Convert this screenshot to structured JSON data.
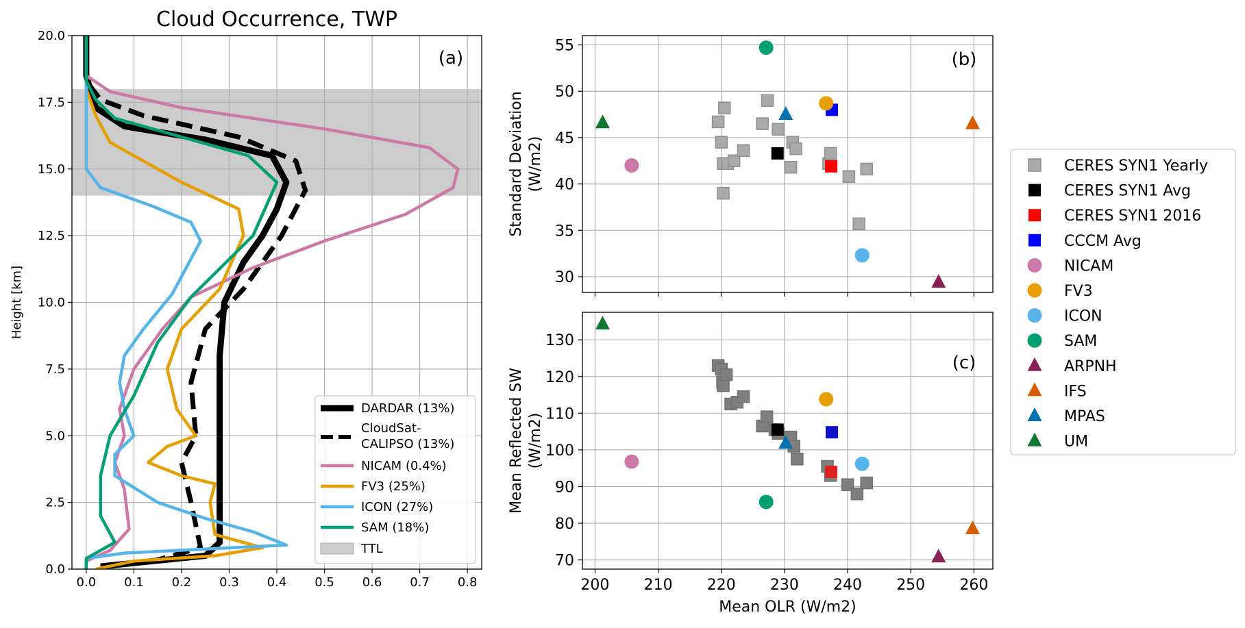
{
  "colors": {
    "DARDAR": "#000000",
    "CloudSat": "#000000",
    "NICAM": "#CC79A7",
    "FV3": "#E69F00",
    "ICON": "#56B4E9",
    "SAM": "#009E73",
    "ARPNH": "#882255",
    "IFS": "#D55E00",
    "MPAS": "#0072B2",
    "UM": "#117733",
    "CERES_yearly": "#aaaaaa",
    "CERES_yearly_c": "#7f7f7f",
    "CERES_avg": "#000000",
    "CERES_2016": "#ff0000",
    "CERES_2016_c": "#dd2222",
    "CCCM": "#0000ff",
    "CCCM_c": "#1111cc",
    "TTL": "#cccccc"
  },
  "chart_data": [
    {
      "type": "line",
      "title": "Cloud Occurrence, TWP",
      "panel_label": "(a)",
      "xlabel": "",
      "ylabel": "Height [km]",
      "xlim": [
        -0.03,
        0.83
      ],
      "ylim": [
        0,
        20
      ],
      "xticks": [
        "0.0",
        "0.1",
        "0.2",
        "0.3",
        "0.4",
        "0.5",
        "0.6",
        "0.7",
        "0.8"
      ],
      "yticks": [
        "0.0",
        "2.5",
        "5.0",
        "7.5",
        "10.0",
        "12.5",
        "15.0",
        "17.5",
        "20.0"
      ],
      "grid": true,
      "legend_position": "lower-right",
      "ttl_band": [
        14,
        18
      ],
      "ttl_label": "TTL",
      "series": [
        {
          "key": "DARDAR",
          "name": "DARDAR (13%)",
          "style": "solid-thick",
          "points": [
            [
              0.03,
              0.1
            ],
            [
              0.14,
              0.3
            ],
            [
              0.25,
              0.5
            ],
            [
              0.28,
              1
            ],
            [
              0.28,
              3
            ],
            [
              0.28,
              5.5
            ],
            [
              0.28,
              8
            ],
            [
              0.29,
              10
            ],
            [
              0.33,
              11.5
            ],
            [
              0.37,
              12.5
            ],
            [
              0.4,
              13.5
            ],
            [
              0.42,
              14.5
            ],
            [
              0.39,
              15.5
            ],
            [
              0.25,
              16.1
            ],
            [
              0.08,
              16.6
            ],
            [
              0.02,
              17.3
            ],
            [
              0.0,
              18.5
            ],
            [
              0.0,
              20
            ]
          ]
        },
        {
          "key": "CloudSat",
          "name": "CloudSat-CALIPSO (13%)",
          "style": "dashed",
          "points": [
            [
              0.03,
              0.1
            ],
            [
              0.14,
              0.3
            ],
            [
              0.24,
              0.8
            ],
            [
              0.22,
              2.5
            ],
            [
              0.2,
              4
            ],
            [
              0.23,
              5
            ],
            [
              0.22,
              7
            ],
            [
              0.25,
              9
            ],
            [
              0.33,
              10.5
            ],
            [
              0.41,
              12.5
            ],
            [
              0.46,
              14.2
            ],
            [
              0.44,
              15.3
            ],
            [
              0.32,
              16.2
            ],
            [
              0.12,
              17.0
            ],
            [
              0.03,
              17.6
            ],
            [
              0.0,
              18.3
            ],
            [
              0.0,
              20
            ]
          ]
        },
        {
          "key": "NICAM",
          "name": "NICAM (0.4%)",
          "style": "solid",
          "points": [
            [
              0.0,
              0.3
            ],
            [
              0.05,
              0.7
            ],
            [
              0.09,
              1.5
            ],
            [
              0.08,
              3
            ],
            [
              0.06,
              4
            ],
            [
              0.08,
              5
            ],
            [
              0.07,
              6
            ],
            [
              0.1,
              7.5
            ],
            [
              0.16,
              9
            ],
            [
              0.22,
              10.2
            ],
            [
              0.35,
              11.3
            ],
            [
              0.5,
              12.3
            ],
            [
              0.67,
              13.3
            ],
            [
              0.77,
              14.3
            ],
            [
              0.78,
              15
            ],
            [
              0.72,
              15.8
            ],
            [
              0.5,
              16.5
            ],
            [
              0.2,
              17.3
            ],
            [
              0.05,
              17.9
            ],
            [
              0.0,
              18.5
            ],
            [
              0.0,
              20
            ]
          ]
        },
        {
          "key": "FV3",
          "name": "FV3 (25%)",
          "style": "solid",
          "points": [
            [
              0.02,
              0
            ],
            [
              0.1,
              0.3
            ],
            [
              0.27,
              0.5
            ],
            [
              0.37,
              0.8
            ],
            [
              0.27,
              1.3
            ],
            [
              0.26,
              2.5
            ],
            [
              0.27,
              3.2
            ],
            [
              0.2,
              3.5
            ],
            [
              0.13,
              4
            ],
            [
              0.17,
              4.6
            ],
            [
              0.23,
              5
            ],
            [
              0.19,
              6
            ],
            [
              0.17,
              7.5
            ],
            [
              0.2,
              9
            ],
            [
              0.28,
              10.5
            ],
            [
              0.33,
              12.5
            ],
            [
              0.32,
              13.5
            ],
            [
              0.2,
              14.5
            ],
            [
              0.05,
              16
            ],
            [
              0.02,
              17
            ],
            [
              0.0,
              18
            ],
            [
              0.0,
              20
            ]
          ]
        },
        {
          "key": "ICON",
          "name": "ICON (27%)",
          "style": "solid",
          "points": [
            [
              0.0,
              0
            ],
            [
              0.0,
              0.4
            ],
            [
              0.08,
              0.6
            ],
            [
              0.42,
              0.9
            ],
            [
              0.35,
              1.4
            ],
            [
              0.25,
              1.9
            ],
            [
              0.15,
              2.5
            ],
            [
              0.06,
              3.5
            ],
            [
              0.06,
              4.3
            ],
            [
              0.1,
              5
            ],
            [
              0.08,
              6
            ],
            [
              0.07,
              7
            ],
            [
              0.08,
              8
            ],
            [
              0.12,
              9
            ],
            [
              0.18,
              10.3
            ],
            [
              0.24,
              12.3
            ],
            [
              0.22,
              13
            ],
            [
              0.14,
              13.6
            ],
            [
              0.03,
              14.3
            ],
            [
              0.0,
              15
            ],
            [
              0.0,
              16
            ],
            [
              0.0,
              20
            ]
          ]
        },
        {
          "key": "SAM",
          "name": "SAM (18%)",
          "style": "solid",
          "points": [
            [
              0.0,
              0
            ],
            [
              0.0,
              0.4
            ],
            [
              0.06,
              1
            ],
            [
              0.03,
              2
            ],
            [
              0.03,
              3.5
            ],
            [
              0.05,
              5
            ],
            [
              0.1,
              6.5
            ],
            [
              0.15,
              8.5
            ],
            [
              0.22,
              10.2
            ],
            [
              0.35,
              12.5
            ],
            [
              0.4,
              14.5
            ],
            [
              0.34,
              15.5
            ],
            [
              0.2,
              16.2
            ],
            [
              0.06,
              16.9
            ],
            [
              0.02,
              17.6
            ],
            [
              0.0,
              18.3
            ],
            [
              0.0,
              20
            ]
          ]
        }
      ]
    },
    {
      "type": "scatter",
      "panel_label": "(b)",
      "xlabel": "",
      "ylabel": "Standard Deviation (W/m2)",
      "ylabel_lines": [
        "Standard Deviation",
        "(W/m2)"
      ],
      "xlim": [
        198,
        263
      ],
      "ylim": [
        28.3,
        56
      ],
      "yticks": [
        "30",
        "35",
        "40",
        "45",
        "50",
        "55"
      ],
      "grid": true,
      "ceres_yearly": [
        [
          219.5,
          46.7
        ],
        [
          220,
          44.5
        ],
        [
          220.3,
          42.2
        ],
        [
          220.5,
          48.2
        ],
        [
          221,
          42.2
        ],
        [
          222,
          42.5
        ],
        [
          223.5,
          43.6
        ],
        [
          226.5,
          46.5
        ],
        [
          227.3,
          49
        ],
        [
          229,
          45.9
        ],
        [
          231,
          41.8
        ],
        [
          231.3,
          44.5
        ],
        [
          231.8,
          43.8
        ],
        [
          237,
          42.2
        ],
        [
          237.3,
          43.3
        ],
        [
          240.2,
          40.8
        ],
        [
          241.8,
          35.7
        ],
        [
          243,
          41.6
        ],
        [
          220.3,
          39
        ]
      ],
      "points": [
        {
          "key": "CERES_avg",
          "shape": "square",
          "x": 228.9,
          "y": 43.3
        },
        {
          "key": "CERES_2016",
          "shape": "square",
          "x": 237.4,
          "y": 41.9
        },
        {
          "key": "CCCM",
          "shape": "square",
          "x": 237.5,
          "y": 48
        },
        {
          "key": "NICAM",
          "shape": "circle",
          "x": 205.8,
          "y": 42
        },
        {
          "key": "FV3",
          "shape": "circle",
          "x": 236.6,
          "y": 48.7
        },
        {
          "key": "ICON",
          "shape": "circle",
          "x": 242.3,
          "y": 32.3
        },
        {
          "key": "SAM",
          "shape": "circle",
          "x": 227.1,
          "y": 54.7
        },
        {
          "key": "ARPNH",
          "shape": "triangle",
          "x": 254.4,
          "y": 29.4
        },
        {
          "key": "IFS",
          "shape": "triangle",
          "x": 259.8,
          "y": 46.5
        },
        {
          "key": "MPAS",
          "shape": "triangle",
          "x": 230.2,
          "y": 47.5
        },
        {
          "key": "UM",
          "shape": "triangle",
          "x": 201.2,
          "y": 46.6
        }
      ]
    },
    {
      "type": "scatter",
      "panel_label": "(c)",
      "xlabel": "Mean OLR (W/m2)",
      "ylabel": "Mean Reflected SW (W/m2)",
      "ylabel_lines": [
        "Mean Reflected SW",
        "(W/m2)"
      ],
      "xlim": [
        198,
        263
      ],
      "ylim": [
        67.5,
        137.5
      ],
      "xticks": [
        "200",
        "210",
        "220",
        "230",
        "240",
        "250",
        "260"
      ],
      "yticks": [
        "70",
        "80",
        "90",
        "100",
        "110",
        "120",
        "130"
      ],
      "grid": true,
      "ceres_yearly": [
        [
          219.5,
          123
        ],
        [
          220,
          122
        ],
        [
          220.2,
          118.5
        ],
        [
          220.3,
          117.5
        ],
        [
          220.8,
          120.5
        ],
        [
          221.5,
          112.5
        ],
        [
          222.5,
          113
        ],
        [
          223.5,
          114.5
        ],
        [
          226.5,
          106.5
        ],
        [
          227.2,
          109
        ],
        [
          228.5,
          105.5
        ],
        [
          229,
          104.5
        ],
        [
          231,
          103.5
        ],
        [
          231.5,
          101
        ],
        [
          232,
          97.5
        ],
        [
          236.8,
          95.5
        ],
        [
          237.3,
          93
        ],
        [
          240,
          90.5
        ],
        [
          241.5,
          88
        ],
        [
          243,
          91
        ]
      ],
      "points": [
        {
          "key": "CERES_avg",
          "shape": "square",
          "x": 228.9,
          "y": 105.5
        },
        {
          "key": "CERES_2016",
          "shape": "square",
          "x": 237.4,
          "y": 94
        },
        {
          "key": "CCCM",
          "shape": "square",
          "x": 237.5,
          "y": 104.8
        },
        {
          "key": "NICAM",
          "shape": "circle",
          "x": 205.8,
          "y": 96.8
        },
        {
          "key": "FV3",
          "shape": "circle",
          "x": 236.6,
          "y": 113.8
        },
        {
          "key": "ICON",
          "shape": "circle",
          "x": 242.3,
          "y": 96.2
        },
        {
          "key": "SAM",
          "shape": "circle",
          "x": 227.1,
          "y": 85.8
        },
        {
          "key": "ARPNH",
          "shape": "triangle",
          "x": 254.4,
          "y": 70.8
        },
        {
          "key": "IFS",
          "shape": "triangle",
          "x": 259.8,
          "y": 78.5
        },
        {
          "key": "MPAS",
          "shape": "triangle",
          "x": 230.2,
          "y": 101.8
        },
        {
          "key": "UM",
          "shape": "triangle",
          "x": 201.2,
          "y": 134.3
        }
      ]
    }
  ],
  "legend_bc": [
    {
      "key": "CERES_yearly",
      "shape": "square",
      "label": "CERES SYN1 Yearly"
    },
    {
      "key": "CERES_avg",
      "shape": "square",
      "label": "CERES SYN1 Avg"
    },
    {
      "key": "CERES_2016",
      "shape": "square",
      "label": "CERES SYN1 2016"
    },
    {
      "key": "CCCM",
      "shape": "square",
      "label": "CCCM Avg"
    },
    {
      "key": "NICAM",
      "shape": "circle",
      "label": "NICAM"
    },
    {
      "key": "FV3",
      "shape": "circle",
      "label": "FV3"
    },
    {
      "key": "ICON",
      "shape": "circle",
      "label": "ICON"
    },
    {
      "key": "SAM",
      "shape": "circle",
      "label": "SAM"
    },
    {
      "key": "ARPNH",
      "shape": "triangle",
      "label": "ARPNH"
    },
    {
      "key": "IFS",
      "shape": "triangle",
      "label": "IFS"
    },
    {
      "key": "MPAS",
      "shape": "triangle",
      "label": "MPAS"
    },
    {
      "key": "UM",
      "shape": "triangle",
      "label": "UM"
    }
  ]
}
